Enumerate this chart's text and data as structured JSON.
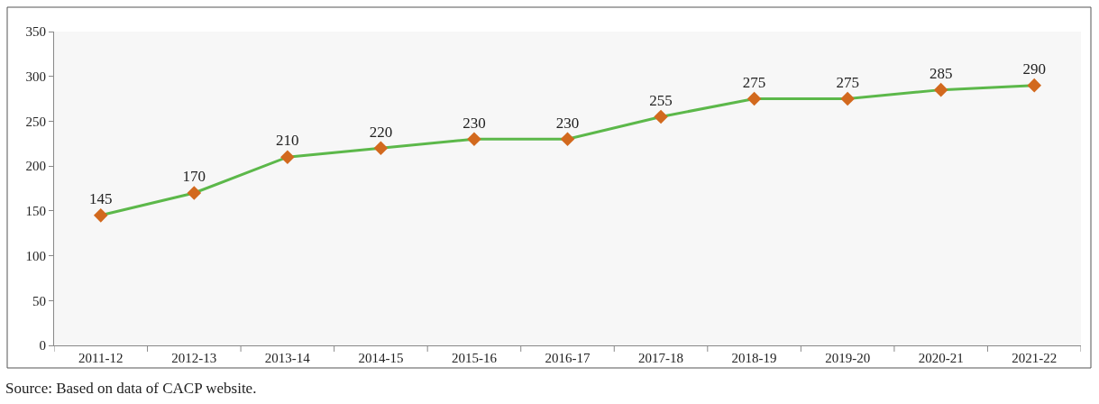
{
  "chart_data": {
    "type": "line",
    "categories": [
      "2011-12",
      "2012-13",
      "2013-14",
      "2014-15",
      "2015-16",
      "2016-17",
      "2017-18",
      "2018-19",
      "2019-20",
      "2020-21",
      "2021-22"
    ],
    "series": [
      {
        "color": "#5cb84a",
        "colors": [
          "#d2691e",
          "#d2691e",
          "#d2691e",
          "#d2691e",
          "#d2691e",
          "#d2691e",
          "#d2691e",
          "#d2691e",
          "#d2691e",
          "#d2691e",
          "#d2691e"
        ],
        "values": [
          145,
          170,
          210,
          220,
          230,
          230,
          255,
          275,
          275,
          285,
          290
        ]
      }
    ],
    "marker": "diamond",
    "line_style": "solid",
    "ylim": [
      0,
      350
    ],
    "yticks": [
      0,
      50,
      100,
      150,
      200,
      250,
      300,
      350
    ],
    "grid": false,
    "legend": false,
    "data_labels": true,
    "annotations": [
      "Source: Based on data of CACP website."
    ]
  }
}
